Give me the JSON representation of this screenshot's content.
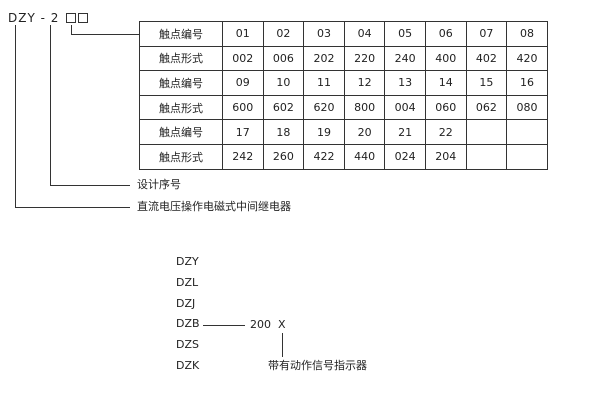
{
  "model": {
    "prefix": "DZY - 2",
    "placeholder_boxes": 2
  },
  "table": {
    "rows": [
      {
        "label": "触点编号",
        "cells": [
          "01",
          "02",
          "03",
          "04",
          "05",
          "06",
          "07",
          "08"
        ]
      },
      {
        "label": "触点形式",
        "cells": [
          "002",
          "006",
          "202",
          "220",
          "240",
          "400",
          "402",
          "420"
        ]
      },
      {
        "label": "触点编号",
        "cells": [
          "09",
          "10",
          "11",
          "12",
          "13",
          "14",
          "15",
          "16"
        ]
      },
      {
        "label": "触点形式",
        "cells": [
          "600",
          "602",
          "620",
          "800",
          "004",
          "060",
          "062",
          "080"
        ]
      },
      {
        "label": "触点编号",
        "cells": [
          "17",
          "18",
          "19",
          "20",
          "21",
          "22",
          "",
          ""
        ]
      },
      {
        "label": "触点形式",
        "cells": [
          "242",
          "260",
          "422",
          "440",
          "024",
          "204",
          "",
          ""
        ]
      }
    ]
  },
  "annotations": {
    "design_serial": "设计序号",
    "relay_type": "直流电压操作电磁式中间继电器"
  },
  "series_list": [
    "DZY",
    "DZL",
    "DZJ",
    "DZB",
    "DZS",
    "DZK"
  ],
  "example": {
    "code": "200",
    "suffix": "X",
    "suffix_meaning": "带有动作信号指示器"
  }
}
